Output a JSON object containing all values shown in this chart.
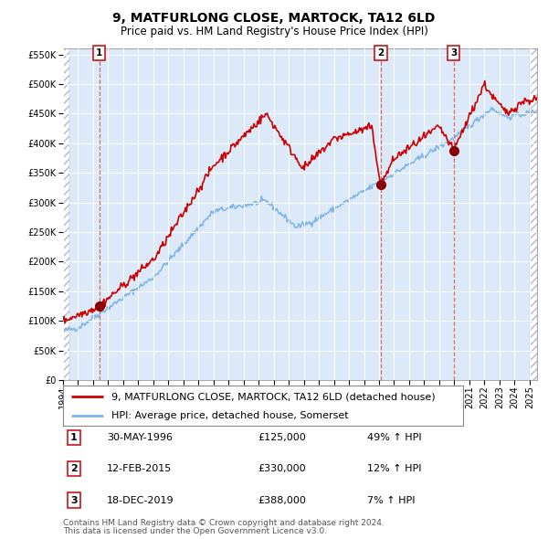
{
  "title": "9, MATFURLONG CLOSE, MARTOCK, TA12 6LD",
  "subtitle": "Price paid vs. HM Land Registry's House Price Index (HPI)",
  "legend_line1": "9, MATFURLONG CLOSE, MARTOCK, TA12 6LD (detached house)",
  "legend_line2": "HPI: Average price, detached house, Somerset",
  "footer1": "Contains HM Land Registry data © Crown copyright and database right 2024.",
  "footer2": "This data is licensed under the Open Government Licence v3.0.",
  "sales": [
    {
      "num": 1,
      "date": "30-MAY-1996",
      "price": 125000,
      "pct": "49%",
      "dir": "↑"
    },
    {
      "num": 2,
      "date": "12-FEB-2015",
      "price": 330000,
      "pct": "12%",
      "dir": "↑"
    },
    {
      "num": 3,
      "date": "18-DEC-2019",
      "price": 388000,
      "pct": "7%",
      "dir": "↑"
    }
  ],
  "sale_years": [
    1996.42,
    2015.12,
    2019.96
  ],
  "sale_prices": [
    125000,
    330000,
    388000
  ],
  "background_color": "#ffffff",
  "plot_bg_color": "#dce9f8",
  "hpi_color": "#7fb3e8",
  "price_color": "#cc0000",
  "vline_color": "#e05050",
  "dot_color": "#880000",
  "ylim": [
    0,
    560000
  ],
  "xlim_start": 1994.0,
  "xlim_end": 2025.5,
  "hatch_right_start": 2025.0,
  "yticks": [
    0,
    50000,
    100000,
    150000,
    200000,
    250000,
    300000,
    350000,
    400000,
    450000,
    500000,
    550000
  ],
  "xtick_years": [
    1994,
    1995,
    1996,
    1997,
    1998,
    1999,
    2000,
    2001,
    2002,
    2003,
    2004,
    2005,
    2006,
    2007,
    2008,
    2009,
    2010,
    2011,
    2012,
    2013,
    2014,
    2015,
    2016,
    2017,
    2018,
    2019,
    2020,
    2021,
    2022,
    2023,
    2024,
    2025
  ],
  "title_fontsize": 10,
  "subtitle_fontsize": 8.5,
  "tick_fontsize": 7,
  "legend_fontsize": 8,
  "table_fontsize": 8,
  "footer_fontsize": 6.5
}
